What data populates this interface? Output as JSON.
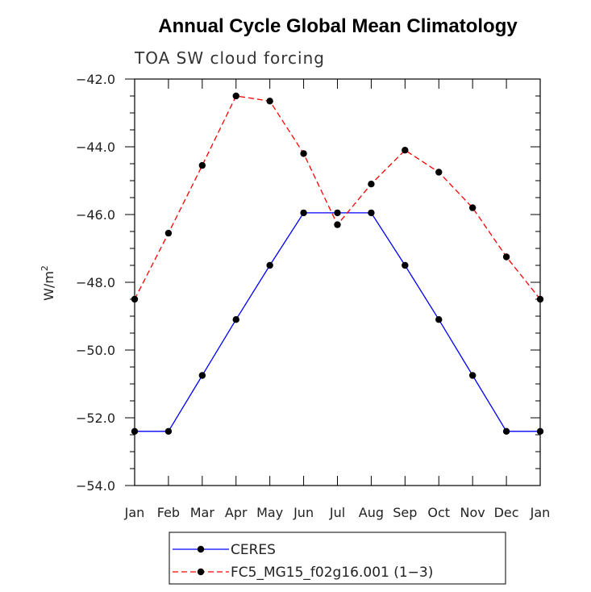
{
  "chart_data": {
    "type": "line",
    "title": "Annual Cycle Global Mean Climatology",
    "subtitle": "TOA SW cloud forcing",
    "ylabel_base": "W/m",
    "ylabel_sup": "2",
    "xlabel": "",
    "categories": [
      "Jan",
      "Feb",
      "Mar",
      "Apr",
      "May",
      "Jun",
      "Jul",
      "Aug",
      "Sep",
      "Oct",
      "Nov",
      "Dec",
      "Jan"
    ],
    "ylim": [
      -54.0,
      -42.0
    ],
    "yticks": [
      -54.0,
      -52.0,
      -50.0,
      -48.0,
      -46.0,
      -44.0,
      -42.0
    ],
    "ytick_labels": [
      "−54.0",
      "−52.0",
      "−50.0",
      "−48.0",
      "−46.0",
      "−44.0",
      "−42.0"
    ],
    "grid": false,
    "legend_position": "bottom",
    "series": [
      {
        "name": "CERES",
        "color": "#0000ff",
        "dash": "solid",
        "values": [
          -52.4,
          -52.4,
          -50.75,
          -49.1,
          -47.5,
          -45.95,
          -45.95,
          -45.95,
          -47.5,
          -49.1,
          -50.75,
          -52.4,
          -52.4
        ]
      },
      {
        "name": "FC5_MG15_f02g16.001 (1−3)",
        "color": "#ff0000",
        "dash": "dashed",
        "values": [
          -48.5,
          -46.55,
          -44.55,
          -42.5,
          -42.65,
          -44.2,
          -46.3,
          -45.1,
          -44.1,
          -44.75,
          -45.8,
          -47.25,
          -48.5
        ]
      }
    ]
  }
}
